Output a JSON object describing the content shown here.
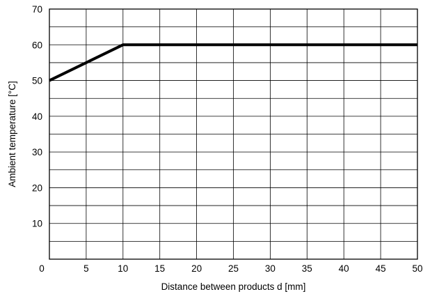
{
  "chart_data": {
    "type": "line",
    "title": "",
    "xlabel": "Distance between products d [mm]",
    "ylabel": "Ambient temperature [°C]",
    "xlim": [
      0,
      50
    ],
    "ylim": [
      0,
      70
    ],
    "x_ticks": [
      0,
      5,
      10,
      15,
      20,
      25,
      30,
      35,
      40,
      45,
      50
    ],
    "y_ticks": [
      0,
      10,
      20,
      30,
      40,
      50,
      60,
      70
    ],
    "x_tick_labels": [
      "0",
      "5",
      "10",
      "15",
      "20",
      "25",
      "30",
      "35",
      "40",
      "45",
      "50"
    ],
    "y_tick_labels": [
      "0",
      "10",
      "20",
      "30",
      "40",
      "50",
      "60",
      "70"
    ],
    "grid": true,
    "grid_x_step": 5,
    "grid_y_step": 5,
    "series": [
      {
        "x": [
          0,
          5,
          10,
          50
        ],
        "y": [
          50,
          55,
          60,
          60
        ],
        "color": "#000000"
      }
    ]
  }
}
